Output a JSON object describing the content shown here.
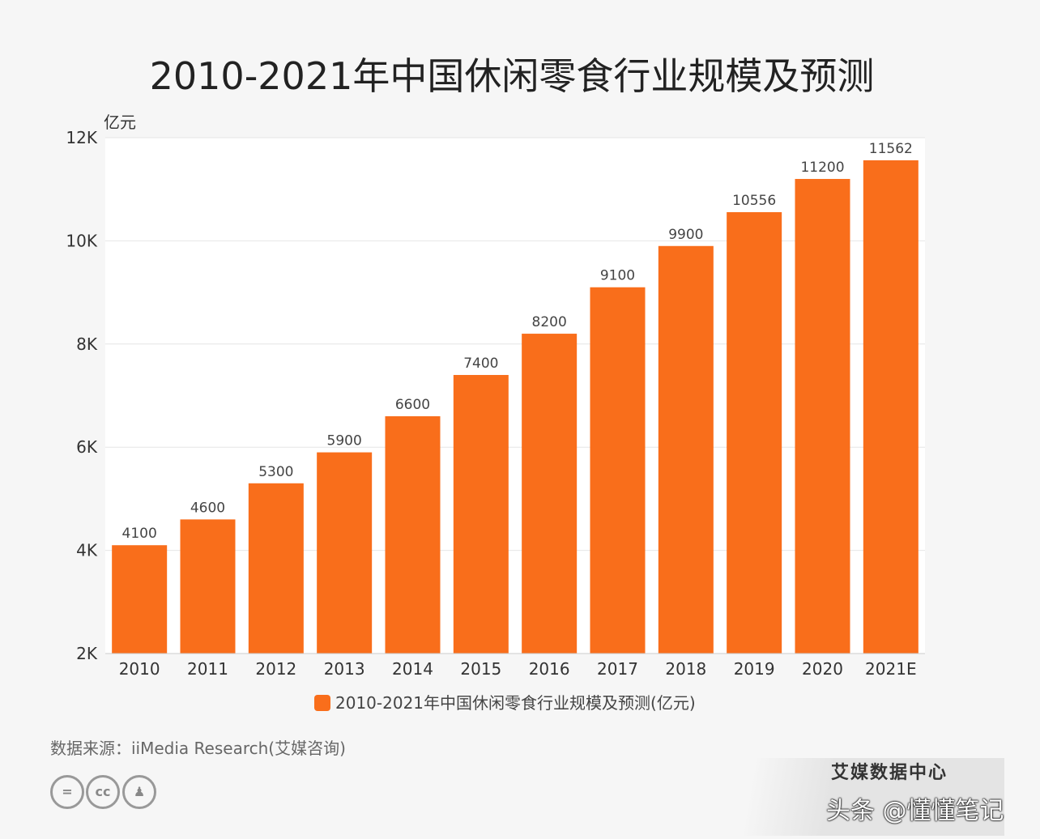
{
  "chart_data": {
    "type": "bar",
    "title": "2010-2021年中国休闲零食行业规模及预测",
    "ylabel": "亿元",
    "xlabel": "",
    "categories": [
      "2010",
      "2011",
      "2012",
      "2013",
      "2014",
      "2015",
      "2016",
      "2017",
      "2018",
      "2019",
      "2020",
      "2021E"
    ],
    "series": [
      {
        "name": "2010-2021年中国休闲零食行业规模及预测(亿元)",
        "values": [
          4100,
          4600,
          5300,
          5900,
          6600,
          7400,
          8200,
          9100,
          9900,
          10556,
          11200,
          11562
        ],
        "color": "#f96e1b"
      }
    ],
    "ylim": [
      2000,
      12000
    ],
    "yticks": [
      {
        "value": 2000,
        "label": "2K"
      },
      {
        "value": 4000,
        "label": "4K"
      },
      {
        "value": 6000,
        "label": "6K"
      },
      {
        "value": 8000,
        "label": "8K"
      },
      {
        "value": 10000,
        "label": "10K"
      },
      {
        "value": 12000,
        "label": "12K"
      }
    ],
    "grid": true,
    "legend": "bottom",
    "data_labels": true
  },
  "footer": {
    "source": "数据来源：iiMedia Research(艾媒咨询)",
    "license_icons": [
      "nd-icon",
      "cc-icon",
      "by-icon"
    ],
    "brand": "艾媒数据中心",
    "watermark": "头条 @懂懂笔记"
  }
}
